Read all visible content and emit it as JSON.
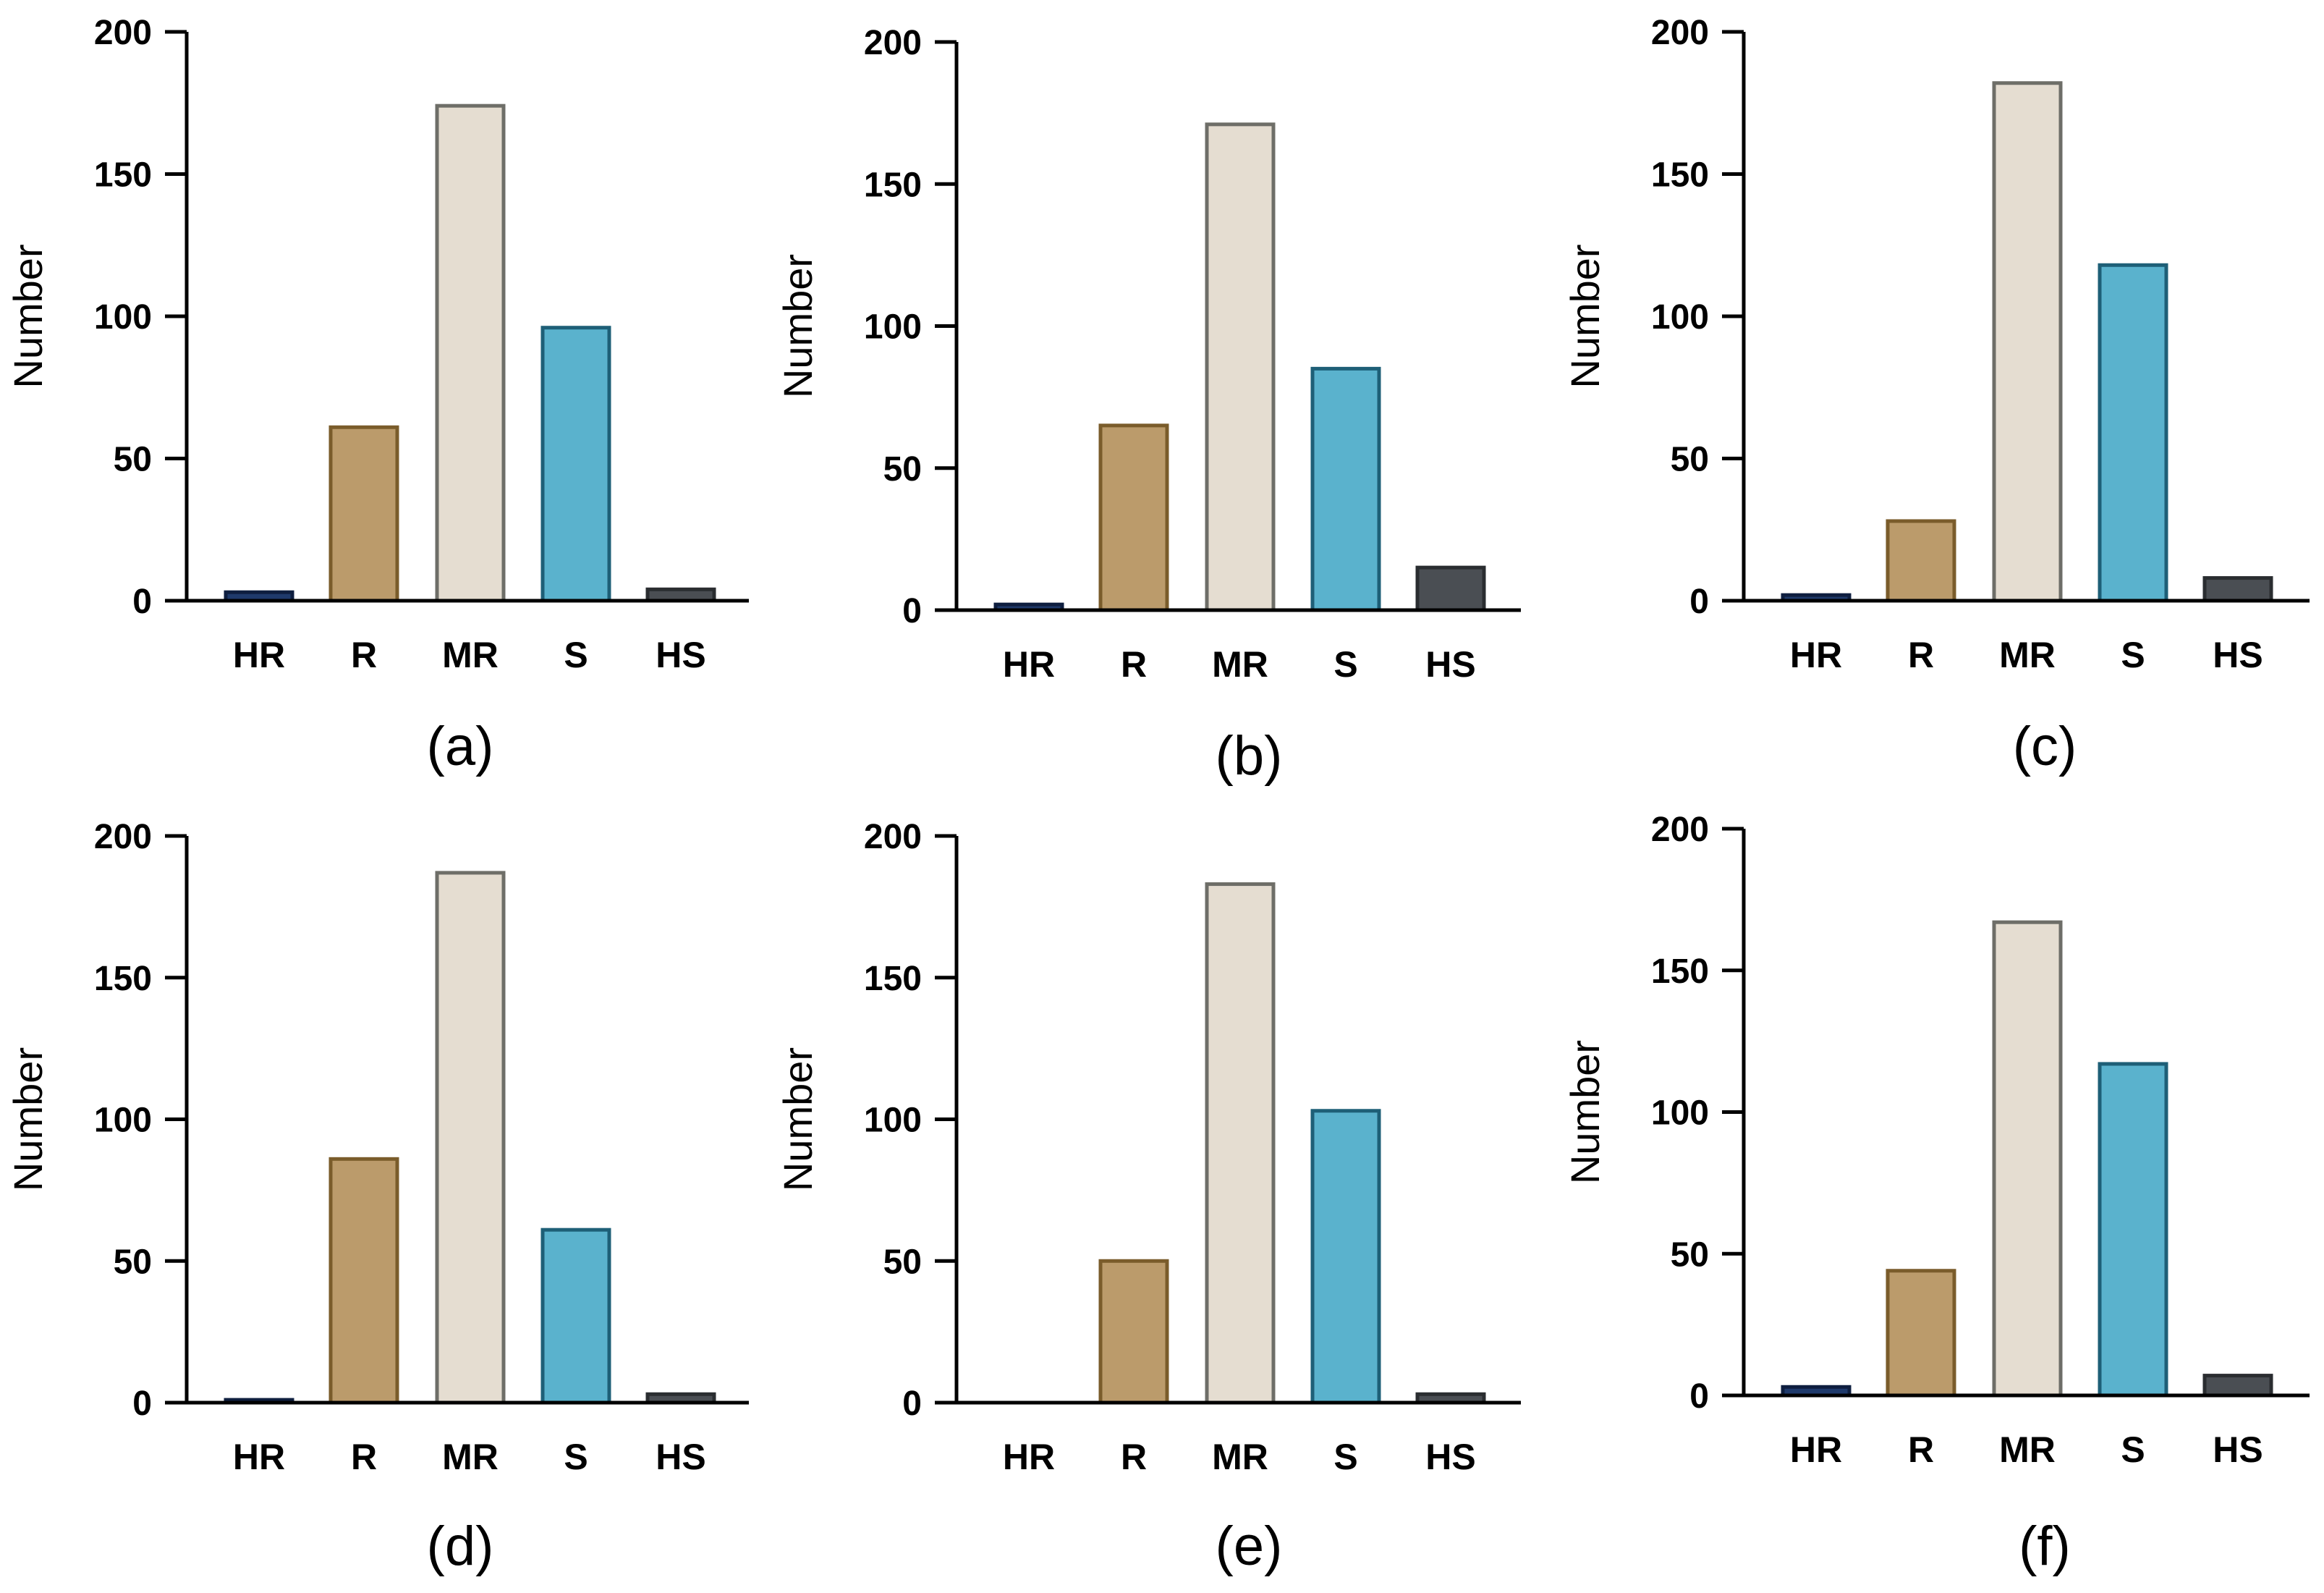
{
  "figure": {
    "panels": 6
  },
  "chart_data": [
    {
      "type": "bar",
      "panel_label": "(a)",
      "ylabel": "Number",
      "xlabel": "",
      "ylim": [
        0,
        200
      ],
      "yticks": [
        0,
        50,
        100,
        150,
        200
      ],
      "categories": [
        "HR",
        "R",
        "MR",
        "S",
        "HS"
      ],
      "values": [
        3,
        61,
        174,
        96,
        4
      ]
    },
    {
      "type": "bar",
      "panel_label": "(b)",
      "ylabel": "Number",
      "xlabel": "",
      "ylim": [
        0,
        200
      ],
      "yticks": [
        0,
        50,
        100,
        150,
        200
      ],
      "categories": [
        "HR",
        "R",
        "MR",
        "S",
        "HS"
      ],
      "values": [
        2,
        65,
        171,
        85,
        15
      ]
    },
    {
      "type": "bar",
      "panel_label": "(c)",
      "ylabel": "Number",
      "xlabel": "",
      "ylim": [
        0,
        200
      ],
      "yticks": [
        0,
        50,
        100,
        150,
        200
      ],
      "categories": [
        "HR",
        "R",
        "MR",
        "S",
        "HS"
      ],
      "values": [
        2,
        28,
        182,
        118,
        8
      ]
    },
    {
      "type": "bar",
      "panel_label": "(d)",
      "ylabel": "Number",
      "xlabel": "",
      "ylim": [
        0,
        200
      ],
      "yticks": [
        0,
        50,
        100,
        150,
        200
      ],
      "categories": [
        "HR",
        "R",
        "MR",
        "S",
        "HS"
      ],
      "values": [
        1,
        86,
        187,
        61,
        3
      ]
    },
    {
      "type": "bar",
      "panel_label": "(e)",
      "ylabel": "Number",
      "xlabel": "",
      "ylim": [
        0,
        200
      ],
      "yticks": [
        0,
        50,
        100,
        150,
        200
      ],
      "categories": [
        "HR",
        "R",
        "MR",
        "S",
        "HS"
      ],
      "values": [
        0,
        50,
        183,
        103,
        3
      ]
    },
    {
      "type": "bar",
      "panel_label": "(f)",
      "ylabel": "Number",
      "xlabel": "",
      "ylim": [
        0,
        200
      ],
      "yticks": [
        0,
        50,
        100,
        150,
        200
      ],
      "categories": [
        "HR",
        "R",
        "MR",
        "S",
        "HS"
      ],
      "values": [
        3,
        44,
        167,
        117,
        7
      ]
    }
  ],
  "colors": {
    "fills": [
      "#1f3a6b",
      "#bb9b6b",
      "#e5ddd1",
      "#5ab2cd",
      "#4a4e53"
    ],
    "edges": [
      "#0e1e3f",
      "#7a5c2b",
      "#6e6e68",
      "#1e5f77",
      "#2a2d30"
    ],
    "axis": "#000000"
  }
}
